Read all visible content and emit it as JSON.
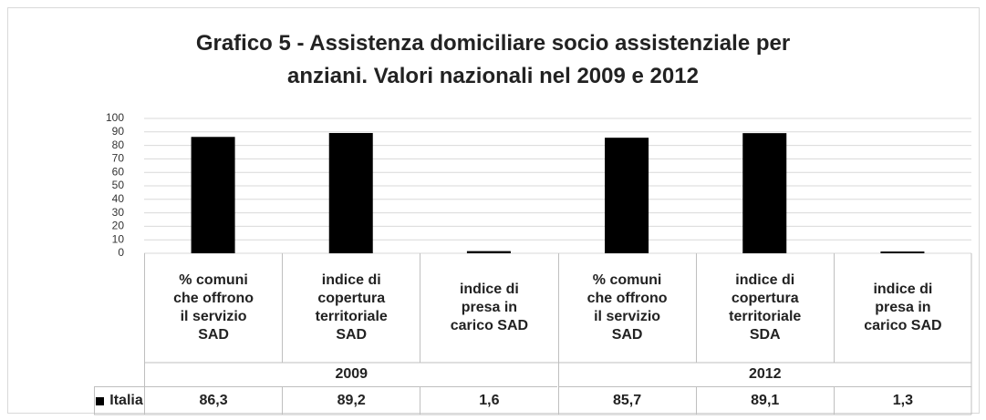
{
  "chart_data": {
    "type": "bar",
    "title": "Grafico 5 - Assistenza domiciliare socio assistenziale per\nanziani. Valori nazionali nel 2009 e 2012",
    "categories": [
      "% comuni\nche offrono\nil servizio\nSAD",
      "indice di\ncopertura\nterritoriale\nSAD",
      "indice di\npresa in\ncarico SAD",
      "% comuni\nche offrono\nil servizio\nSAD",
      "indice di\ncopertura\nterritoriale\nSDA",
      "indice di\npresa in\ncarico SAD"
    ],
    "groups": [
      "2009",
      "2012"
    ],
    "series": [
      {
        "name": "Italia",
        "color": "#000000",
        "values": [
          86.3,
          89.2,
          1.6,
          85.7,
          89.1,
          1.3
        ],
        "value_labels": [
          "86,3",
          "89,2",
          "1,6",
          "85,7",
          "89,1",
          "1,3"
        ]
      }
    ],
    "ylim": [
      0,
      100
    ],
    "yticks": [
      0,
      10,
      20,
      30,
      40,
      50,
      60,
      70,
      80,
      90,
      100
    ],
    "grid": true
  }
}
